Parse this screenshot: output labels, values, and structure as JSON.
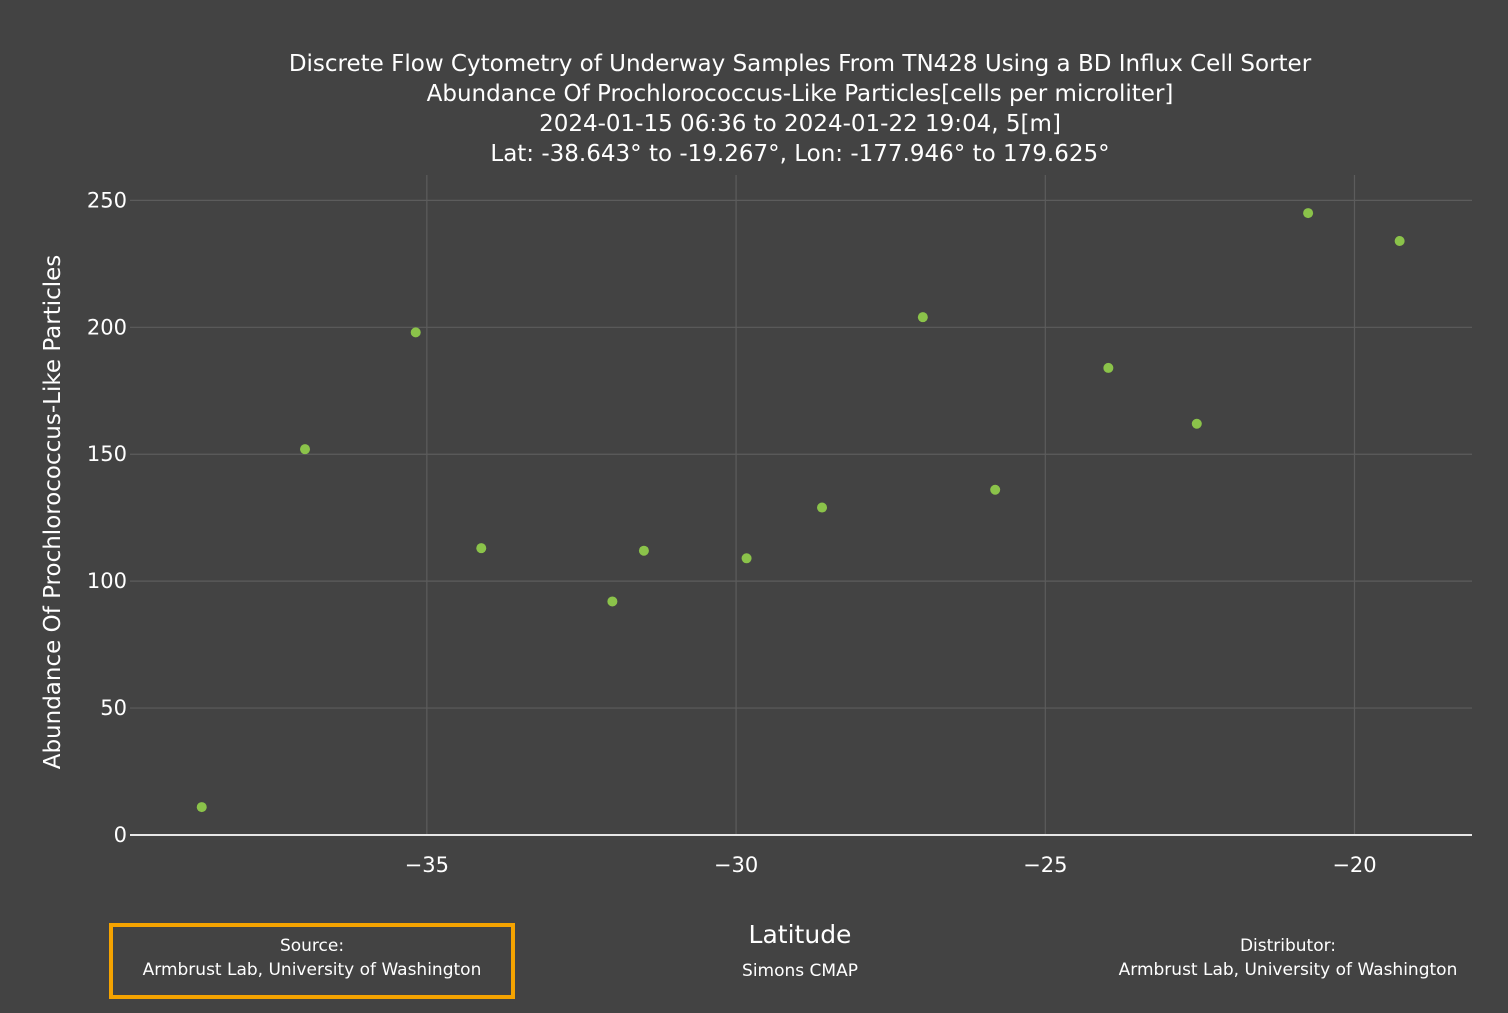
{
  "chart_data": {
    "type": "scatter",
    "title": [
      "Discrete Flow Cytometry of Underway Samples From TN428 Using a BD Influx Cell Sorter",
      "Abundance Of Prochlorococcus-Like Particles[cells per microliter]",
      "2024-01-15 06:36 to 2024-01-22 19:04, 5[m]",
      "Lat: -38.643° to -19.267°, Lon: -177.946° to 179.625°"
    ],
    "xlabel": "Latitude",
    "ylabel": "Abundance Of Prochlorococcus-Like Particles",
    "x_ticks": [
      -35,
      -30,
      -25,
      -20
    ],
    "x_tick_labels": [
      "−35",
      "−30",
      "−25",
      "−20"
    ],
    "y_ticks": [
      0,
      50,
      100,
      150,
      200,
      250
    ],
    "y_tick_labels": [
      "0",
      "50",
      "100",
      "150",
      "200",
      "250"
    ],
    "xlim": [
      -39.8,
      -18.1
    ],
    "ylim": [
      0,
      260
    ],
    "grid": true,
    "marker_color": "#8bc34a",
    "series": [
      {
        "x": [
          -38.64,
          -36.97,
          -35.18,
          -34.12,
          -32.0,
          -31.49,
          -29.83,
          -28.61,
          -26.98,
          -25.81,
          -23.98,
          -22.55,
          -20.75,
          -19.27
        ],
        "y": [
          11,
          152,
          198,
          113,
          92,
          112,
          109,
          129,
          204,
          136,
          184,
          162,
          245,
          234
        ]
      }
    ]
  },
  "footer": {
    "source_heading": "Source:",
    "source_name": "Armbrust Lab, University of Washington",
    "distributor_heading": "Distributor:",
    "distributor_name": "Armbrust Lab, University of Washington",
    "credit": "Simons CMAP"
  },
  "colors": {
    "background": "#434343",
    "highlight": "#f5a300"
  }
}
